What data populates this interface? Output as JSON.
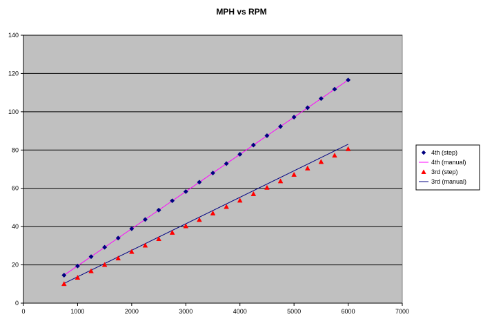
{
  "chart_data": {
    "type": "scatter",
    "title": "MPH vs RPM",
    "xlabel": "",
    "ylabel": "",
    "xlim": [
      0,
      7000
    ],
    "ylim": [
      0,
      140
    ],
    "xticks": [
      0,
      1000,
      2000,
      3000,
      4000,
      5000,
      6000,
      7000
    ],
    "yticks": [
      0,
      20,
      40,
      60,
      80,
      100,
      120,
      140
    ],
    "grid": "horizontal",
    "legend_position": "right",
    "plot_background": "#c0c0c0",
    "series": [
      {
        "name": "4th (step)",
        "kind": "marker",
        "marker": "diamond",
        "color": "#000080",
        "x": [
          750,
          1000,
          1250,
          1500,
          1750,
          2000,
          2250,
          2500,
          2750,
          3000,
          3250,
          3500,
          3750,
          4000,
          4250,
          4500,
          4750,
          5000,
          5250,
          5500,
          5750,
          6000
        ],
        "y": [
          14.6,
          19.4,
          24.3,
          29.2,
          34.0,
          38.9,
          43.7,
          48.6,
          53.5,
          58.3,
          63.2,
          68.0,
          72.9,
          77.8,
          82.6,
          87.5,
          92.3,
          97.2,
          102.1,
          106.9,
          111.8,
          116.6
        ]
      },
      {
        "name": "4th (manual)",
        "kind": "line",
        "color": "#ff00ff",
        "x": [
          750,
          6000
        ],
        "y": [
          14.6,
          116.6
        ]
      },
      {
        "name": "3rd (step)",
        "kind": "marker",
        "marker": "triangle",
        "color": "#ff0000",
        "x": [
          750,
          1000,
          1250,
          1500,
          1750,
          2000,
          2250,
          2500,
          2750,
          3000,
          3250,
          3500,
          3750,
          4000,
          4250,
          4500,
          4750,
          5000,
          5250,
          5500,
          5750,
          6000
        ],
        "y": [
          10.1,
          13.4,
          16.8,
          20.1,
          23.5,
          26.9,
          30.2,
          33.6,
          36.9,
          40.3,
          43.6,
          47.0,
          50.4,
          53.7,
          57.1,
          60.4,
          63.8,
          67.2,
          70.5,
          73.9,
          77.2,
          80.6
        ]
      },
      {
        "name": "3rd (manual)",
        "kind": "line",
        "color": "#000080",
        "x": [
          750,
          6000
        ],
        "y": [
          10.3,
          83.0
        ]
      }
    ]
  }
}
